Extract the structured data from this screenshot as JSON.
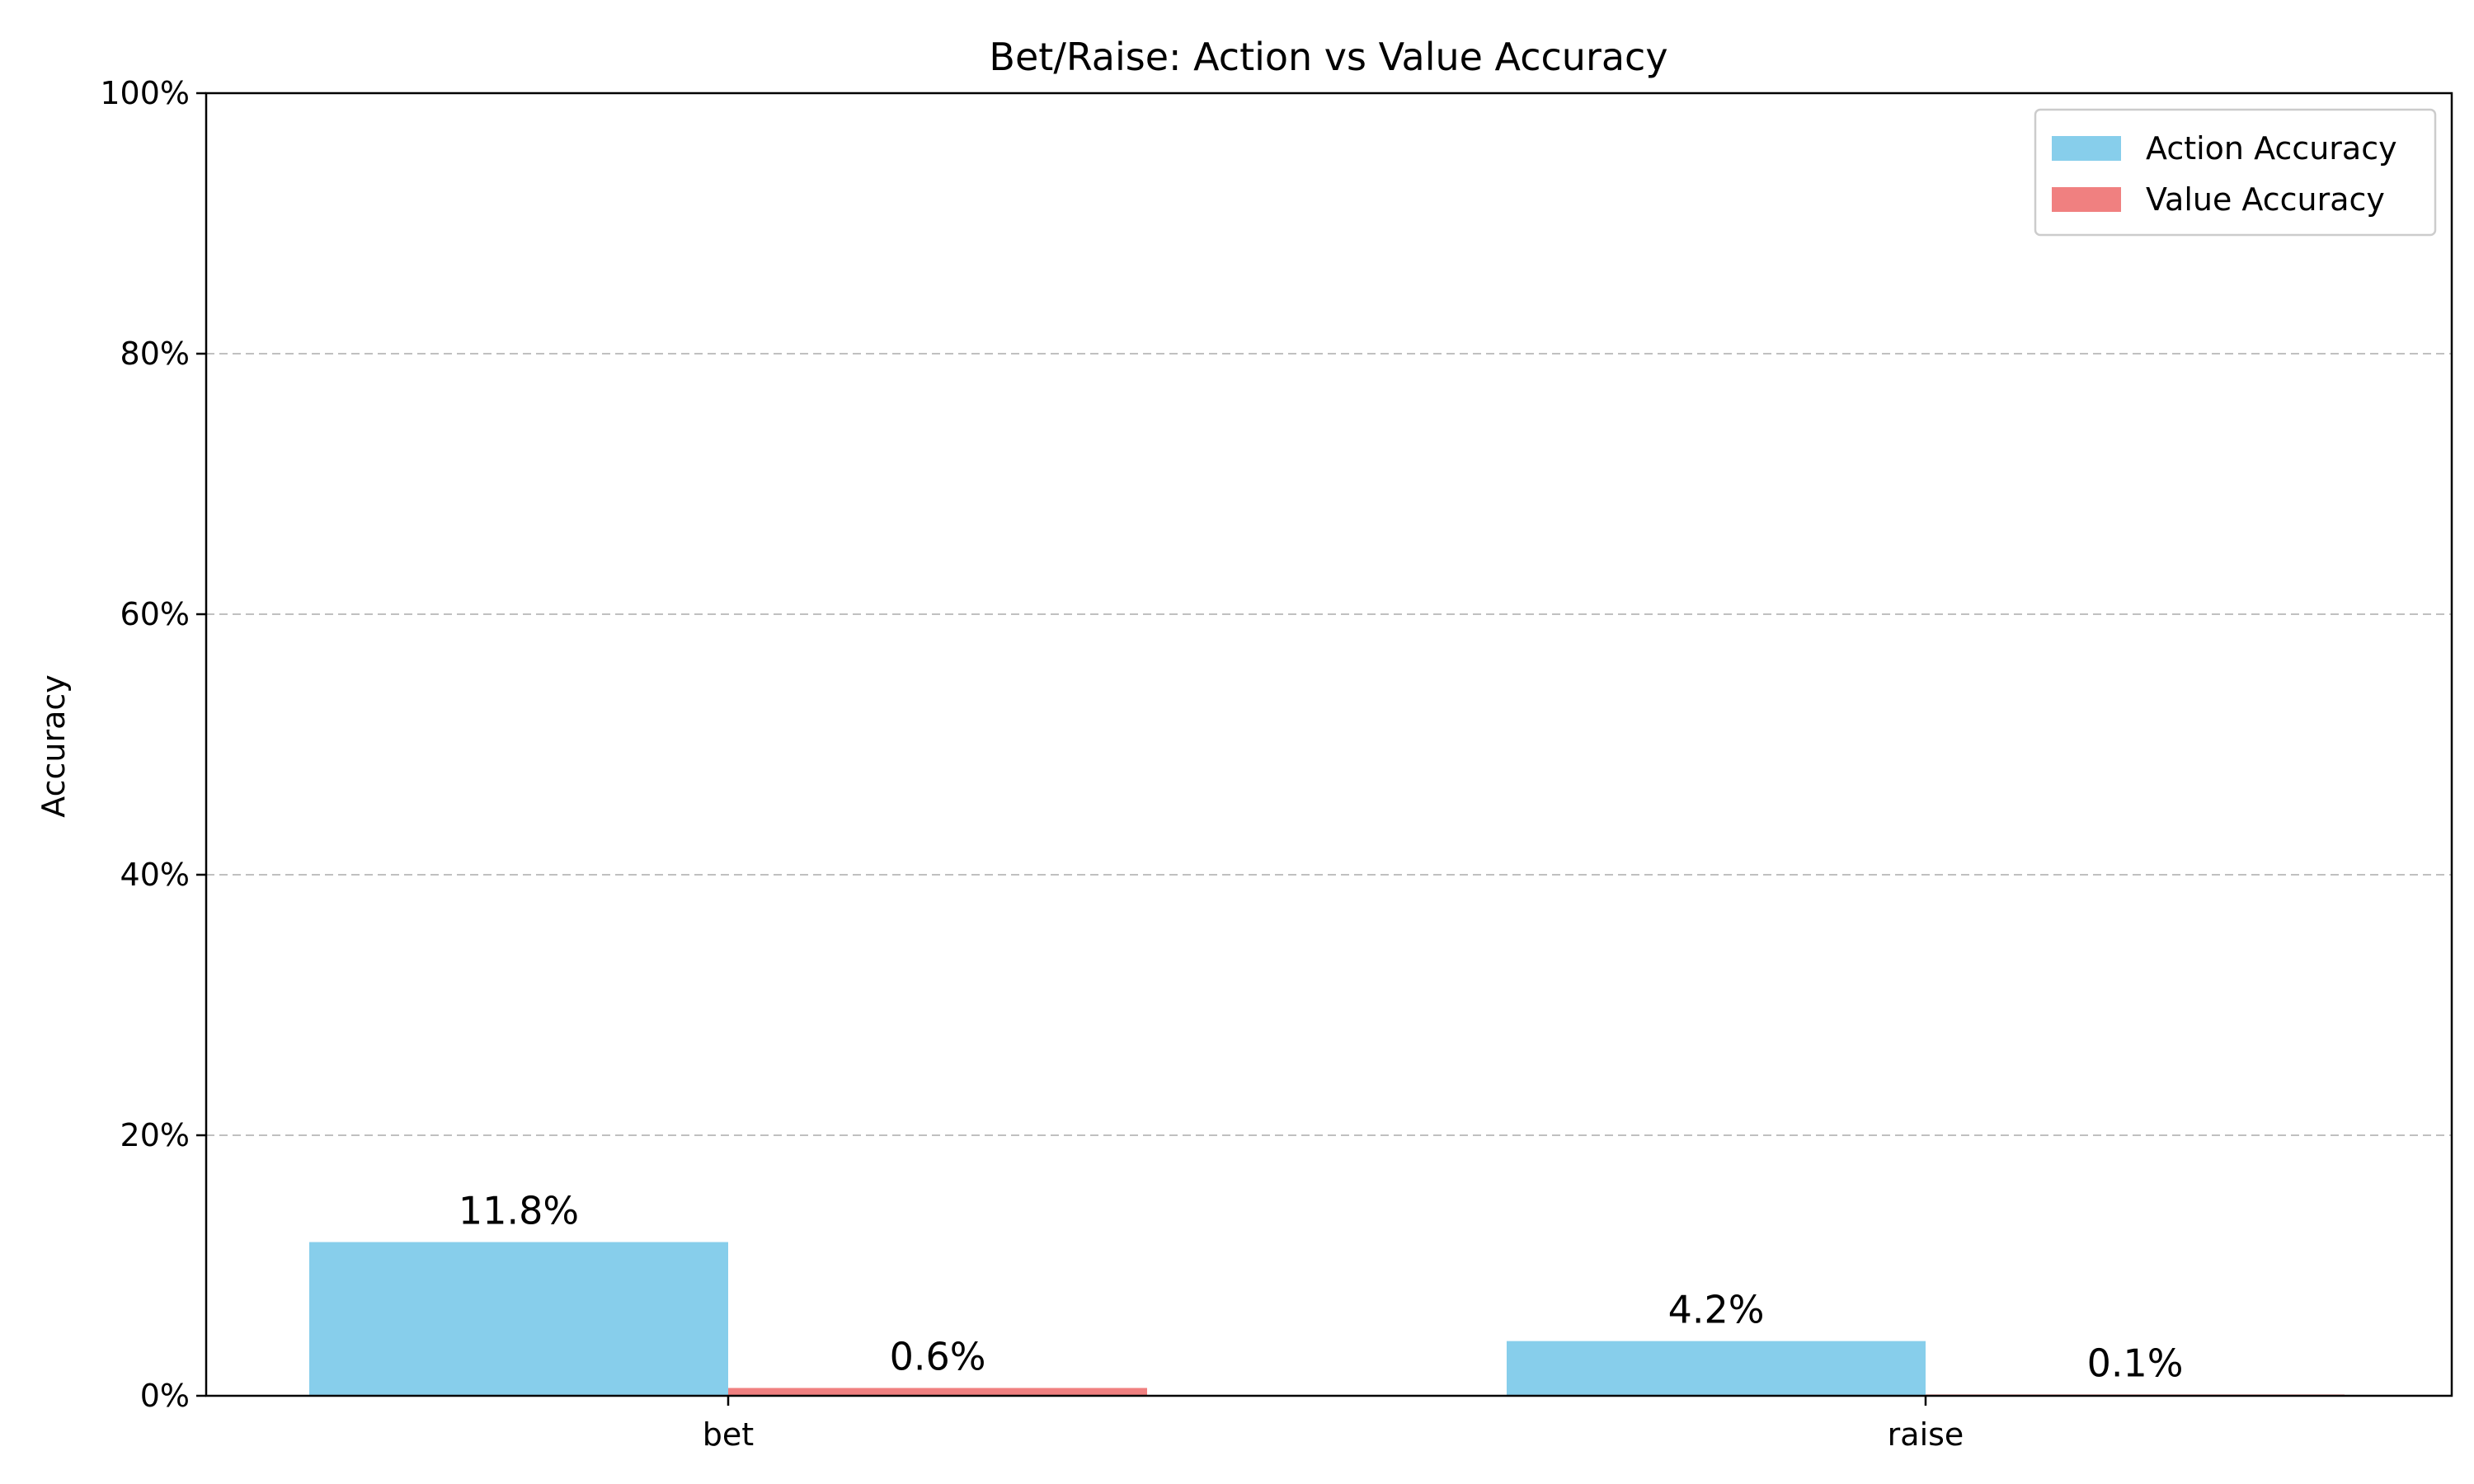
{
  "chart_data": {
    "type": "bar",
    "title": "Bet/Raise: Action vs Value Accuracy",
    "xlabel": "",
    "ylabel": "Accuracy",
    "categories": [
      "bet",
      "raise"
    ],
    "series": [
      {
        "name": "Action Accuracy",
        "color": "#87ceeb",
        "values": [
          11.8,
          4.2
        ],
        "labels": [
          "11.8%",
          "4.2%"
        ]
      },
      {
        "name": "Value Accuracy",
        "color": "#f08080",
        "values": [
          0.6,
          0.1
        ],
        "labels": [
          "0.6%",
          "0.1%"
        ]
      }
    ],
    "ylim": [
      0,
      100
    ],
    "yticks": [
      0,
      20,
      40,
      60,
      80,
      100
    ],
    "ytick_labels": [
      "0%",
      "20%",
      "40%",
      "60%",
      "80%",
      "100%"
    ],
    "grid": "y-dashed",
    "legend": "top-right"
  }
}
